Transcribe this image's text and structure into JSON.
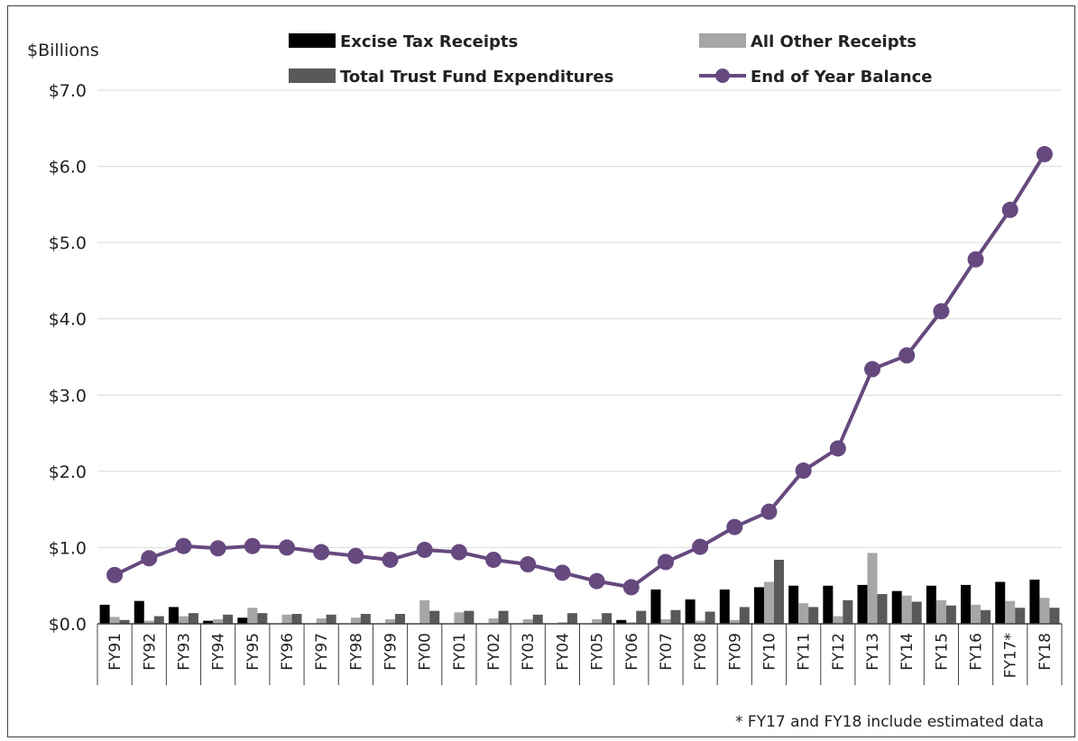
{
  "chart_data": {
    "type": "bar",
    "y_unit_label": "$Billions",
    "ylim": [
      0,
      7
    ],
    "y_ticks": [
      "$0.0",
      "$1.0",
      "$2.0",
      "$3.0",
      "$4.0",
      "$5.0",
      "$6.0",
      "$7.0"
    ],
    "grid": true,
    "legend_position": "top",
    "categories": [
      "FY91",
      "FY92",
      "FY93",
      "FY94",
      "FY95",
      "FY96",
      "FY97",
      "FY98",
      "FY99",
      "FY00",
      "FY01",
      "FY02",
      "FY03",
      "FY04",
      "FY05",
      "FY06",
      "FY07",
      "FY08",
      "FY09",
      "FY10",
      "FY11",
      "FY12",
      "FY13",
      "FY14",
      "FY15",
      "FY16",
      "FY17*",
      "FY18"
    ],
    "series": [
      {
        "name": "Excise Tax Receipts",
        "type": "bar",
        "color": "#000000",
        "values": [
          0.25,
          0.3,
          0.22,
          0.04,
          0.08,
          0.0,
          0.0,
          0.0,
          0.0,
          0.0,
          0.0,
          0.0,
          0.0,
          0.0,
          0.0,
          0.05,
          0.45,
          0.32,
          0.45,
          0.48,
          0.5,
          0.5,
          0.51,
          0.43,
          0.5,
          0.51,
          0.55,
          0.58
        ]
      },
      {
        "name": "All Other Receipts",
        "type": "bar",
        "color": "#a6a6a6",
        "values": [
          0.09,
          0.04,
          0.1,
          0.06,
          0.21,
          0.12,
          0.07,
          0.08,
          0.06,
          0.31,
          0.15,
          0.07,
          0.06,
          0.02,
          0.06,
          0.02,
          0.06,
          0.04,
          0.05,
          0.55,
          0.27,
          0.1,
          0.93,
          0.37,
          0.31,
          0.25,
          0.3,
          0.34
        ]
      },
      {
        "name": "Total Trust Fund Expenditures",
        "type": "bar",
        "color": "#595959",
        "values": [
          0.05,
          0.1,
          0.14,
          0.12,
          0.14,
          0.13,
          0.12,
          0.13,
          0.13,
          0.17,
          0.17,
          0.17,
          0.12,
          0.14,
          0.14,
          0.17,
          0.18,
          0.16,
          0.22,
          0.84,
          0.22,
          0.31,
          0.39,
          0.29,
          0.24,
          0.18,
          0.21,
          0.21
        ]
      },
      {
        "name": "End of Year Balance",
        "type": "line",
        "color": "#66497f",
        "values": [
          0.64,
          0.86,
          1.02,
          0.99,
          1.02,
          1.0,
          0.94,
          0.89,
          0.84,
          0.97,
          0.94,
          0.84,
          0.78,
          0.67,
          0.56,
          0.48,
          0.81,
          1.01,
          1.27,
          1.47,
          2.01,
          2.3,
          3.34,
          3.52,
          4.1,
          4.78,
          5.43,
          6.16
        ]
      }
    ],
    "annotation": "* FY17 and FY18 include estimated data"
  }
}
